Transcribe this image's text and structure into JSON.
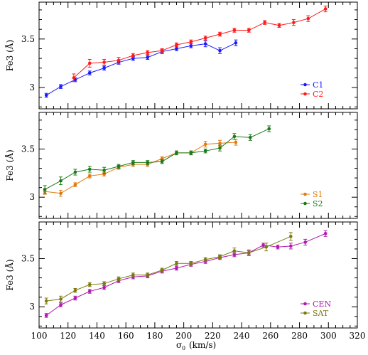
{
  "chart_data": [
    {
      "type": "line",
      "panel": "top",
      "ylabel": "Fe3 (Å)",
      "xlim": [
        100,
        320
      ],
      "ylim": [
        2.78,
        3.88
      ],
      "yticks": [
        "3",
        "3.5"
      ],
      "legend_position": "bottom-right",
      "series": [
        {
          "name": "C1",
          "color": "#1a1aff",
          "points": [
            [
              105,
              2.92
            ],
            [
              115,
              3.01
            ],
            [
              125,
              3.08
            ],
            [
              135,
              3.15
            ],
            [
              145,
              3.2
            ],
            [
              155,
              3.26
            ],
            [
              165,
              3.3
            ],
            [
              175,
              3.31
            ],
            [
              185,
              3.37
            ],
            [
              195,
              3.4
            ],
            [
              205,
              3.43
            ],
            [
              215,
              3.45
            ],
            [
              225,
              3.38
            ],
            [
              236,
              3.46
            ]
          ],
          "errors": [
            0.02,
            0.02,
            0.02,
            0.02,
            0.02,
            0.02,
            0.02,
            0.02,
            0.02,
            0.02,
            0.02,
            0.03,
            0.03,
            0.03
          ]
        },
        {
          "name": "C2",
          "color": "#ff1a1a",
          "points": [
            [
              124,
              3.1
            ],
            [
              135,
              3.25
            ],
            [
              145,
              3.26
            ],
            [
              155,
              3.28
            ],
            [
              165,
              3.33
            ],
            [
              175,
              3.36
            ],
            [
              185,
              3.38
            ],
            [
              195,
              3.44
            ],
            [
              205,
              3.47
            ],
            [
              215,
              3.51
            ],
            [
              225,
              3.55
            ],
            [
              235,
              3.59
            ],
            [
              245,
              3.59
            ],
            [
              256,
              3.67
            ],
            [
              266,
              3.64
            ],
            [
              276,
              3.67
            ],
            [
              286,
              3.71
            ],
            [
              298,
              3.81
            ]
          ],
          "errors": [
            0.04,
            0.04,
            0.03,
            0.03,
            0.02,
            0.02,
            0.02,
            0.02,
            0.02,
            0.02,
            0.02,
            0.02,
            0.02,
            0.02,
            0.02,
            0.03,
            0.03,
            0.03
          ]
        }
      ]
    },
    {
      "type": "line",
      "panel": "middle",
      "ylabel": "Fe3 (Å)",
      "xlim": [
        100,
        320
      ],
      "ylim": [
        2.78,
        3.88
      ],
      "yticks": [
        "3",
        "3.5"
      ],
      "legend_position": "bottom-right",
      "series": [
        {
          "name": "S1",
          "color": "#e07a10",
          "points": [
            [
              104,
              3.06
            ],
            [
              115,
              3.04
            ],
            [
              125,
              3.13
            ],
            [
              135,
              3.22
            ],
            [
              145,
              3.24
            ],
            [
              155,
              3.31
            ],
            [
              165,
              3.34
            ],
            [
              175,
              3.34
            ],
            [
              185,
              3.4
            ],
            [
              195,
              3.46
            ],
            [
              205,
              3.46
            ],
            [
              215,
              3.55
            ],
            [
              225,
              3.56
            ],
            [
              236,
              3.57
            ]
          ],
          "errors": [
            0.03,
            0.03,
            0.02,
            0.02,
            0.02,
            0.02,
            0.02,
            0.02,
            0.02,
            0.02,
            0.02,
            0.03,
            0.03,
            0.03
          ]
        },
        {
          "name": "S2",
          "color": "#1a7a1a",
          "points": [
            [
              104,
              3.08
            ],
            [
              115,
              3.17
            ],
            [
              125,
              3.26
            ],
            [
              135,
              3.29
            ],
            [
              145,
              3.28
            ],
            [
              155,
              3.32
            ],
            [
              165,
              3.36
            ],
            [
              175,
              3.36
            ],
            [
              185,
              3.37
            ],
            [
              195,
              3.46
            ],
            [
              205,
              3.46
            ],
            [
              215,
              3.48
            ],
            [
              225,
              3.51
            ],
            [
              235,
              3.63
            ],
            [
              246,
              3.62
            ],
            [
              259,
              3.71
            ]
          ],
          "errors": [
            0.04,
            0.04,
            0.03,
            0.03,
            0.03,
            0.02,
            0.02,
            0.02,
            0.02,
            0.02,
            0.02,
            0.02,
            0.03,
            0.03,
            0.03,
            0.03
          ]
        }
      ]
    },
    {
      "type": "line",
      "panel": "bottom",
      "ylabel": "Fe3 (Å)",
      "xlabel_symbol": "σ",
      "xlabel_subscript": "0",
      "xlabel_units": "(km/s)",
      "xlim": [
        100,
        320
      ],
      "ylim": [
        2.78,
        3.88
      ],
      "yticks": [
        "3",
        "3.5"
      ],
      "xticks": [
        "100",
        "120",
        "140",
        "160",
        "180",
        "200",
        "220",
        "240",
        "260",
        "280",
        "300",
        "320"
      ],
      "legend_position": "bottom-right",
      "series": [
        {
          "name": "CEN",
          "color": "#b01ab0",
          "points": [
            [
              105,
              2.91
            ],
            [
              115,
              3.02
            ],
            [
              125,
              3.09
            ],
            [
              135,
              3.16
            ],
            [
              145,
              3.2
            ],
            [
              155,
              3.27
            ],
            [
              165,
              3.31
            ],
            [
              175,
              3.32
            ],
            [
              185,
              3.37
            ],
            [
              195,
              3.4
            ],
            [
              205,
              3.44
            ],
            [
              215,
              3.47
            ],
            [
              225,
              3.51
            ],
            [
              235,
              3.54
            ],
            [
              245,
              3.56
            ],
            [
              255,
              3.64
            ],
            [
              265,
              3.62
            ],
            [
              274,
              3.63
            ],
            [
              284,
              3.67
            ],
            [
              298,
              3.76
            ]
          ],
          "errors": [
            0.02,
            0.02,
            0.02,
            0.02,
            0.02,
            0.02,
            0.02,
            0.02,
            0.02,
            0.02,
            0.02,
            0.02,
            0.02,
            0.02,
            0.02,
            0.02,
            0.02,
            0.03,
            0.03,
            0.03
          ]
        },
        {
          "name": "SAT",
          "color": "#7a7a10",
          "points": [
            [
              105,
              3.06
            ],
            [
              115,
              3.08
            ],
            [
              125,
              3.17
            ],
            [
              135,
              3.23
            ],
            [
              145,
              3.24
            ],
            [
              155,
              3.29
            ],
            [
              165,
              3.33
            ],
            [
              175,
              3.33
            ],
            [
              185,
              3.38
            ],
            [
              195,
              3.45
            ],
            [
              205,
              3.45
            ],
            [
              215,
              3.49
            ],
            [
              225,
              3.52
            ],
            [
              235,
              3.58
            ],
            [
              245,
              3.56
            ],
            [
              257,
              3.62
            ],
            [
              274,
              3.73
            ]
          ],
          "errors": [
            0.03,
            0.03,
            0.02,
            0.02,
            0.02,
            0.02,
            0.02,
            0.02,
            0.02,
            0.02,
            0.02,
            0.02,
            0.02,
            0.03,
            0.03,
            0.04,
            0.04
          ]
        }
      ]
    }
  ]
}
